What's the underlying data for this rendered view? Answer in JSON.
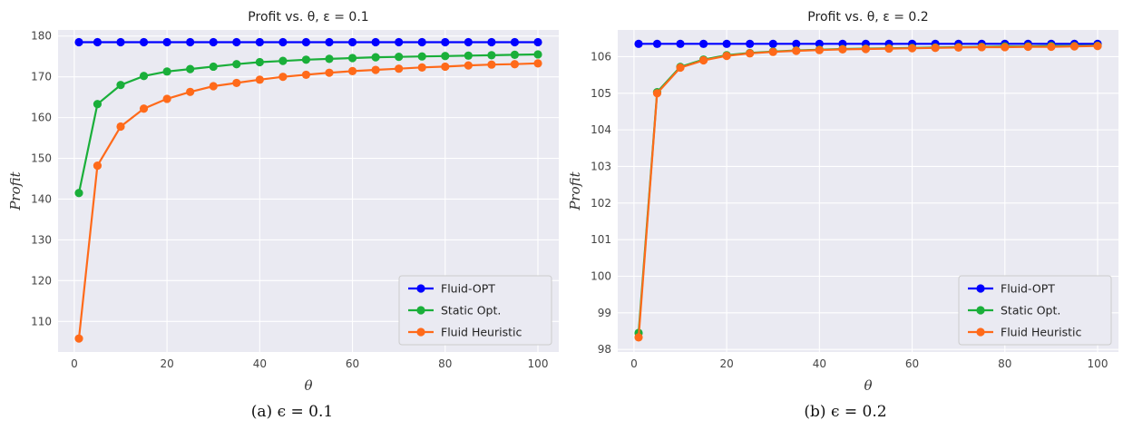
{
  "chart_data": [
    {
      "type": "line",
      "title": "Profit vs. θ, ε = 0.1",
      "xlabel": "θ",
      "ylabel": "Profit",
      "caption": "(a) ϵ = 0.1",
      "xlim": [
        -3.5,
        104.5
      ],
      "ylim": [
        102.5,
        181.5
      ],
      "xticks": [
        0,
        20,
        40,
        60,
        80,
        100
      ],
      "yticks": [
        110,
        120,
        130,
        140,
        150,
        160,
        170,
        180
      ],
      "grid": true,
      "legend_position": "lower-right",
      "x": [
        1,
        5,
        10,
        15,
        20,
        25,
        30,
        35,
        40,
        45,
        50,
        55,
        60,
        65,
        70,
        75,
        80,
        85,
        90,
        95,
        100
      ],
      "series": [
        {
          "name": "Fluid-OPT",
          "color": "#0000ff",
          "values": [
            178.5,
            178.5,
            178.5,
            178.5,
            178.5,
            178.5,
            178.5,
            178.5,
            178.5,
            178.5,
            178.5,
            178.5,
            178.5,
            178.5,
            178.5,
            178.5,
            178.5,
            178.5,
            178.5,
            178.5,
            178.5
          ]
        },
        {
          "name": "Static Opt.",
          "color": "#1aaf3a",
          "values": [
            141.5,
            163.3,
            168.0,
            170.2,
            171.3,
            171.9,
            172.5,
            173.1,
            173.6,
            173.9,
            174.2,
            174.4,
            174.6,
            174.8,
            174.9,
            175.0,
            175.1,
            175.2,
            175.3,
            175.4,
            175.5
          ]
        },
        {
          "name": "Fluid Heuristic",
          "color": "#ff6a1a",
          "values": [
            105.8,
            148.2,
            157.8,
            162.2,
            164.6,
            166.3,
            167.7,
            168.5,
            169.3,
            170.0,
            170.5,
            171.0,
            171.4,
            171.7,
            172.0,
            172.3,
            172.5,
            172.8,
            173.0,
            173.1,
            173.3
          ]
        }
      ]
    },
    {
      "type": "line",
      "title": "Profit vs. θ, ε = 0.2",
      "xlabel": "θ",
      "ylabel": "Profit",
      "caption": "(b) ϵ = 0.2",
      "xlim": [
        -3.5,
        104.5
      ],
      "ylim": [
        97.93,
        106.73
      ],
      "xticks": [
        0,
        20,
        40,
        60,
        80,
        100
      ],
      "yticks": [
        98,
        99,
        100,
        101,
        102,
        103,
        104,
        105,
        106
      ],
      "grid": true,
      "legend_position": "lower-right",
      "x": [
        1,
        5,
        10,
        15,
        20,
        25,
        30,
        35,
        40,
        45,
        50,
        55,
        60,
        65,
        70,
        75,
        80,
        85,
        90,
        95,
        100
      ],
      "series": [
        {
          "name": "Fluid-OPT",
          "color": "#0000ff",
          "values": [
            106.35,
            106.35,
            106.35,
            106.35,
            106.35,
            106.35,
            106.35,
            106.35,
            106.35,
            106.35,
            106.35,
            106.35,
            106.35,
            106.35,
            106.35,
            106.35,
            106.35,
            106.35,
            106.35,
            106.35,
            106.35
          ]
        },
        {
          "name": "Static Opt.",
          "color": "#1aaf3a",
          "values": [
            98.45,
            105.03,
            105.72,
            105.92,
            106.04,
            106.1,
            106.14,
            106.17,
            106.19,
            106.21,
            106.22,
            106.23,
            106.24,
            106.25,
            106.26,
            106.27,
            106.28,
            106.28,
            106.29,
            106.29,
            106.3
          ]
        },
        {
          "name": "Fluid Heuristic",
          "color": "#ff6a1a",
          "values": [
            98.33,
            105.0,
            105.7,
            105.9,
            106.02,
            106.09,
            106.13,
            106.16,
            106.18,
            106.2,
            106.21,
            106.22,
            106.23,
            106.24,
            106.25,
            106.26,
            106.26,
            106.27,
            106.27,
            106.28,
            106.29
          ]
        }
      ]
    }
  ]
}
